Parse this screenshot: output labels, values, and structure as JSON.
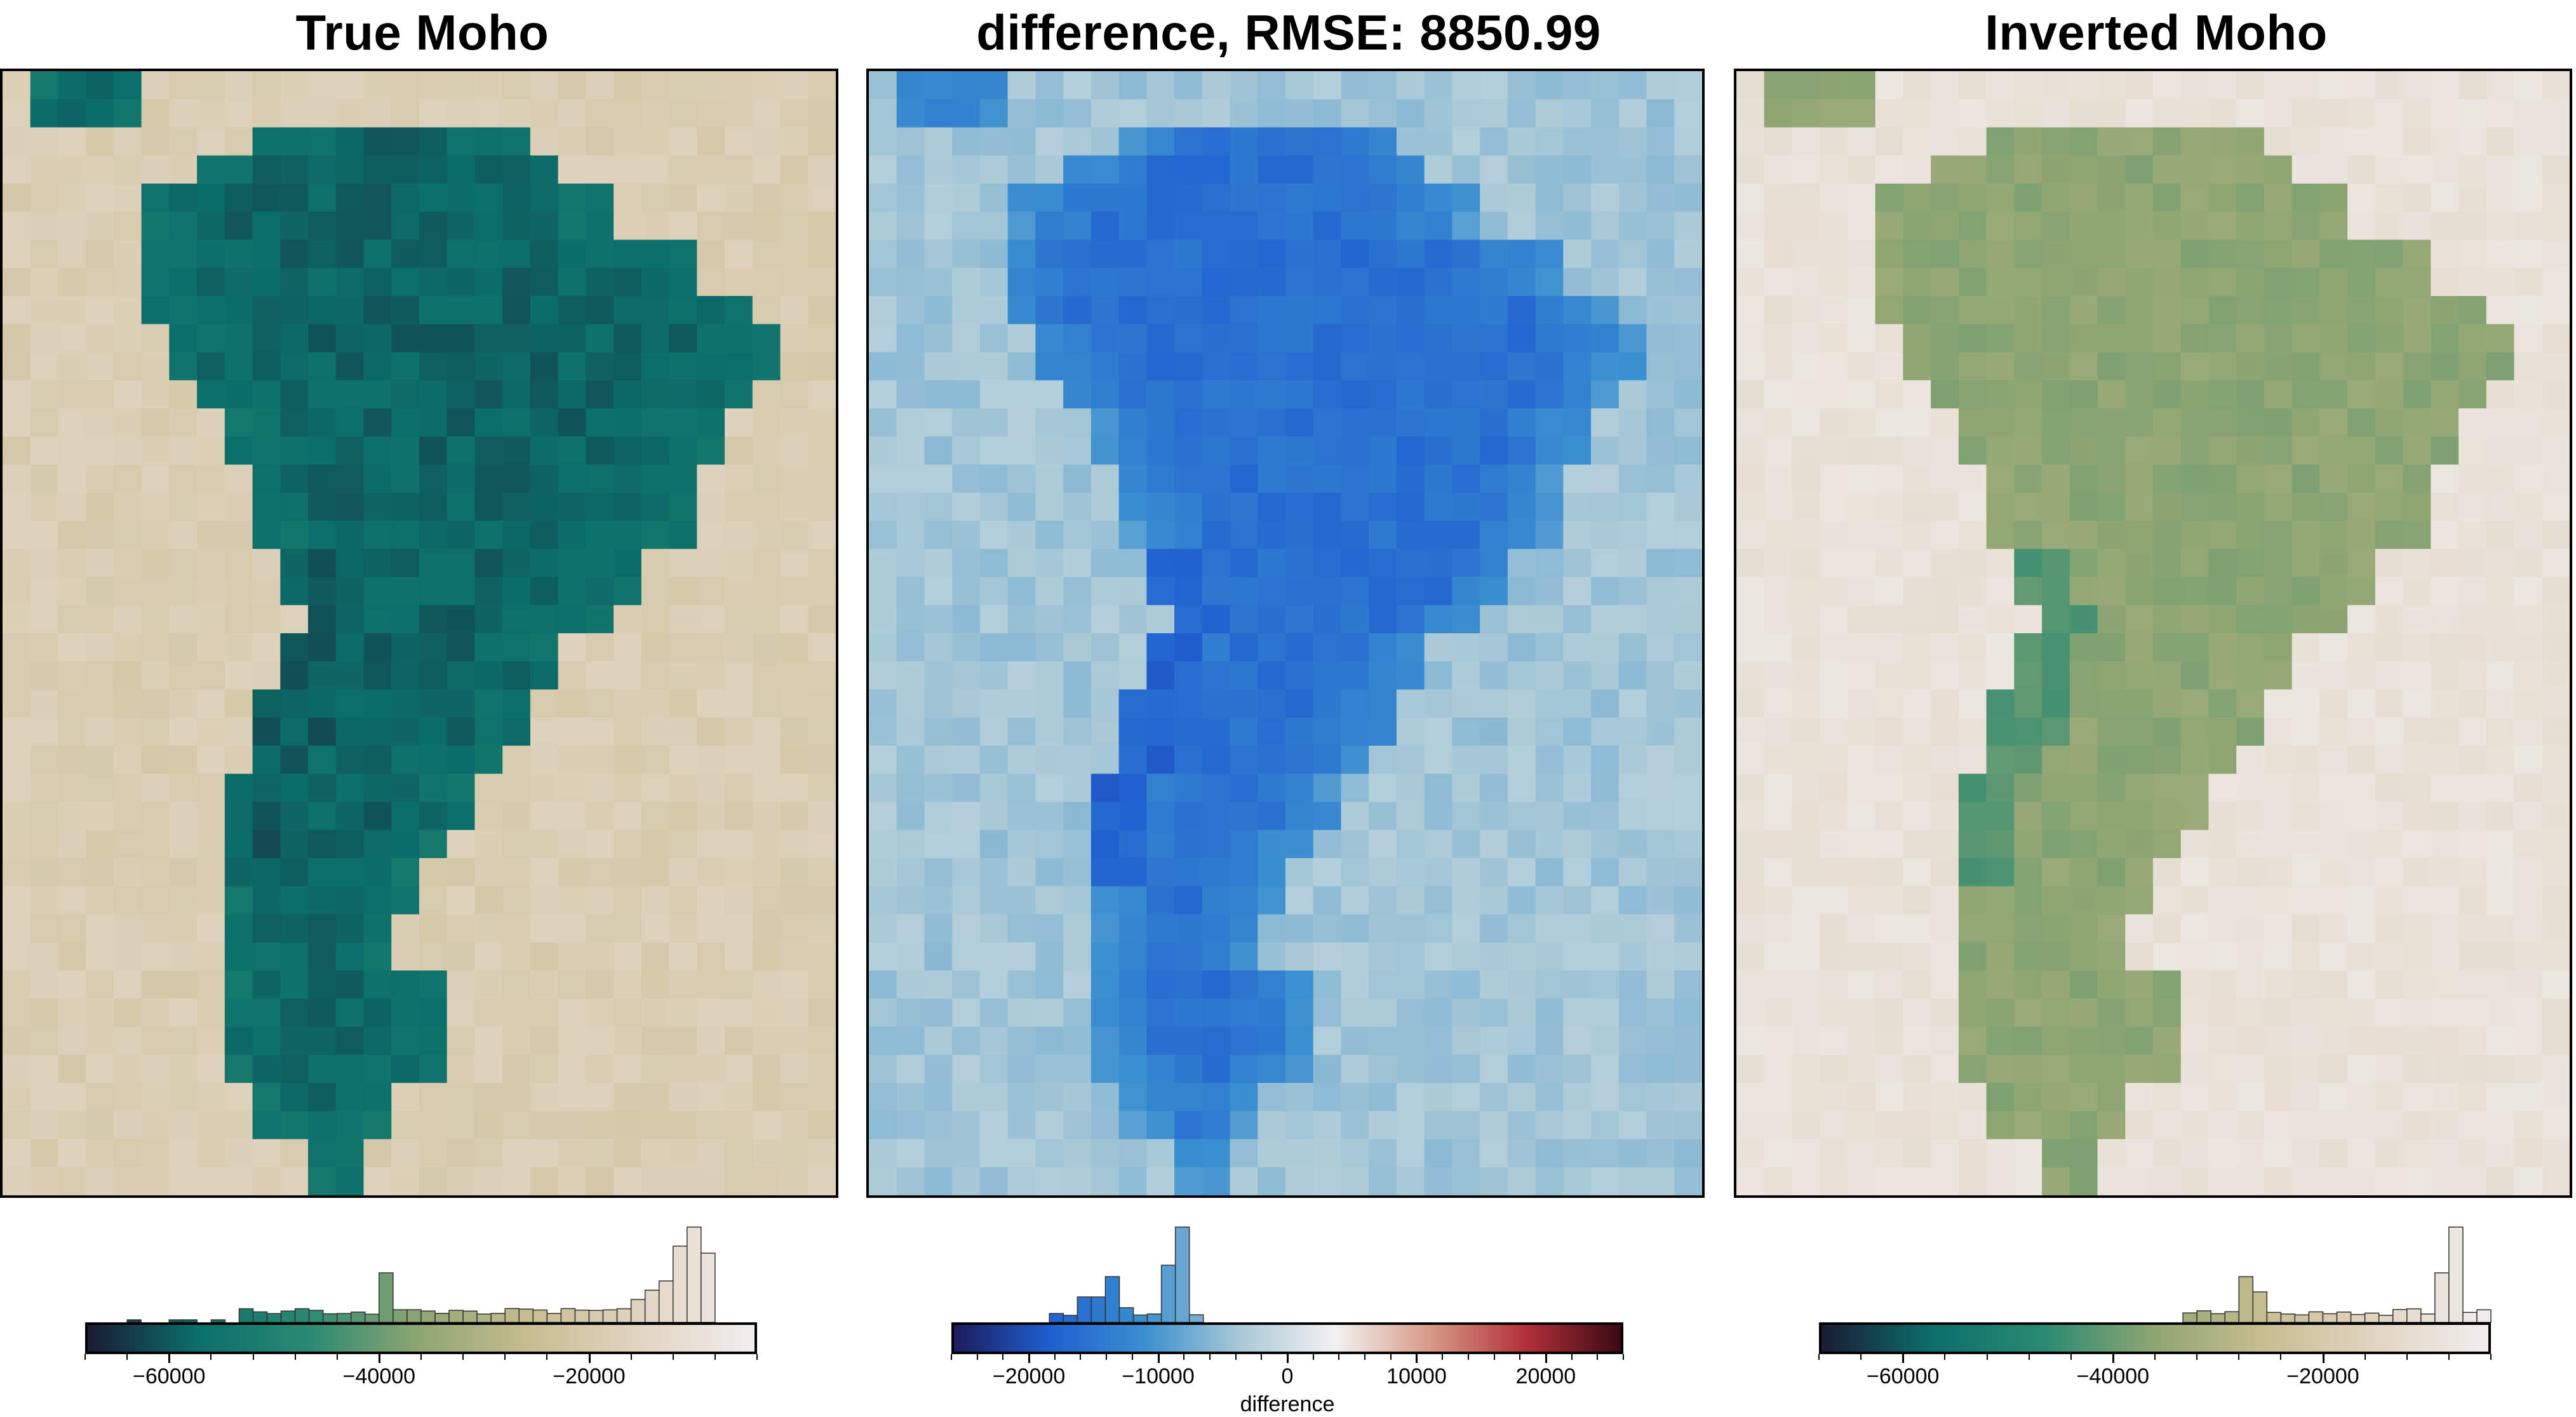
{
  "panels": [
    {
      "title": "True Moho",
      "cmap": "moho",
      "offset": 0,
      "ticks": [
        -60000,
        -40000,
        -20000
      ],
      "tick_labels": [
        "−60000",
        "−40000",
        "−20000"
      ],
      "cbar_range": [
        -68000,
        -4000
      ],
      "cbar_label": ""
    },
    {
      "title": "difference, RMSE: 8850.99",
      "cmap": "diff",
      "offset": 0,
      "ticks": [
        -20000,
        -10000,
        0,
        10000,
        20000
      ],
      "tick_labels": [
        "−20000",
        "−10000",
        "0",
        "10000",
        "20000"
      ],
      "cbar_range": [
        -26000,
        26000
      ],
      "cbar_label": "difference"
    },
    {
      "title": "Inverted Moho",
      "cmap": "moho",
      "offset": 0,
      "ticks": [
        -60000,
        -40000,
        -20000
      ],
      "tick_labels": [
        "−60000",
        "−40000",
        "−20000"
      ],
      "cbar_range": [
        -68000,
        -4000
      ],
      "cbar_label": ""
    }
  ],
  "chart_data": [
    {
      "type": "heatmap",
      "title": "True Moho",
      "colorbar_ticks": [
        -60000,
        -40000,
        -20000
      ],
      "colorbar_range": [
        -68000,
        -4000
      ],
      "histogram": {
        "note": "histogram of grid values drawn above colorbar",
        "peaks": [
          -40000,
          -9000,
          -7000
        ]
      }
    },
    {
      "type": "heatmap",
      "title": "difference, RMSE: 8850.99",
      "colorbar_ticks": [
        -20000,
        -10000,
        0,
        10000,
        20000
      ],
      "colorbar_range": [
        -26000,
        26000
      ],
      "colorbar_label": "difference",
      "histogram": {
        "peaks": [
          -13000,
          -4500
        ]
      }
    },
    {
      "type": "heatmap",
      "title": "Inverted Moho",
      "colorbar_ticks": [
        -60000,
        -40000,
        -20000
      ],
      "colorbar_range": [
        -68000,
        -4000
      ],
      "histogram": {
        "peaks": [
          -28000,
          -7000,
          -5000
        ]
      }
    }
  ],
  "colors": {
    "moho_stops": [
      "#1b1b33",
      "#0b6f6b",
      "#2a8a72",
      "#8fa672",
      "#c9bd91",
      "#e2d5c3",
      "#f1eeee"
    ],
    "diff_stops": [
      "#1c1c5a",
      "#1f5fd0",
      "#3a8fd0",
      "#a9c9d6",
      "#f2f2f2",
      "#d79a86",
      "#b3303a",
      "#3a0a14"
    ]
  }
}
